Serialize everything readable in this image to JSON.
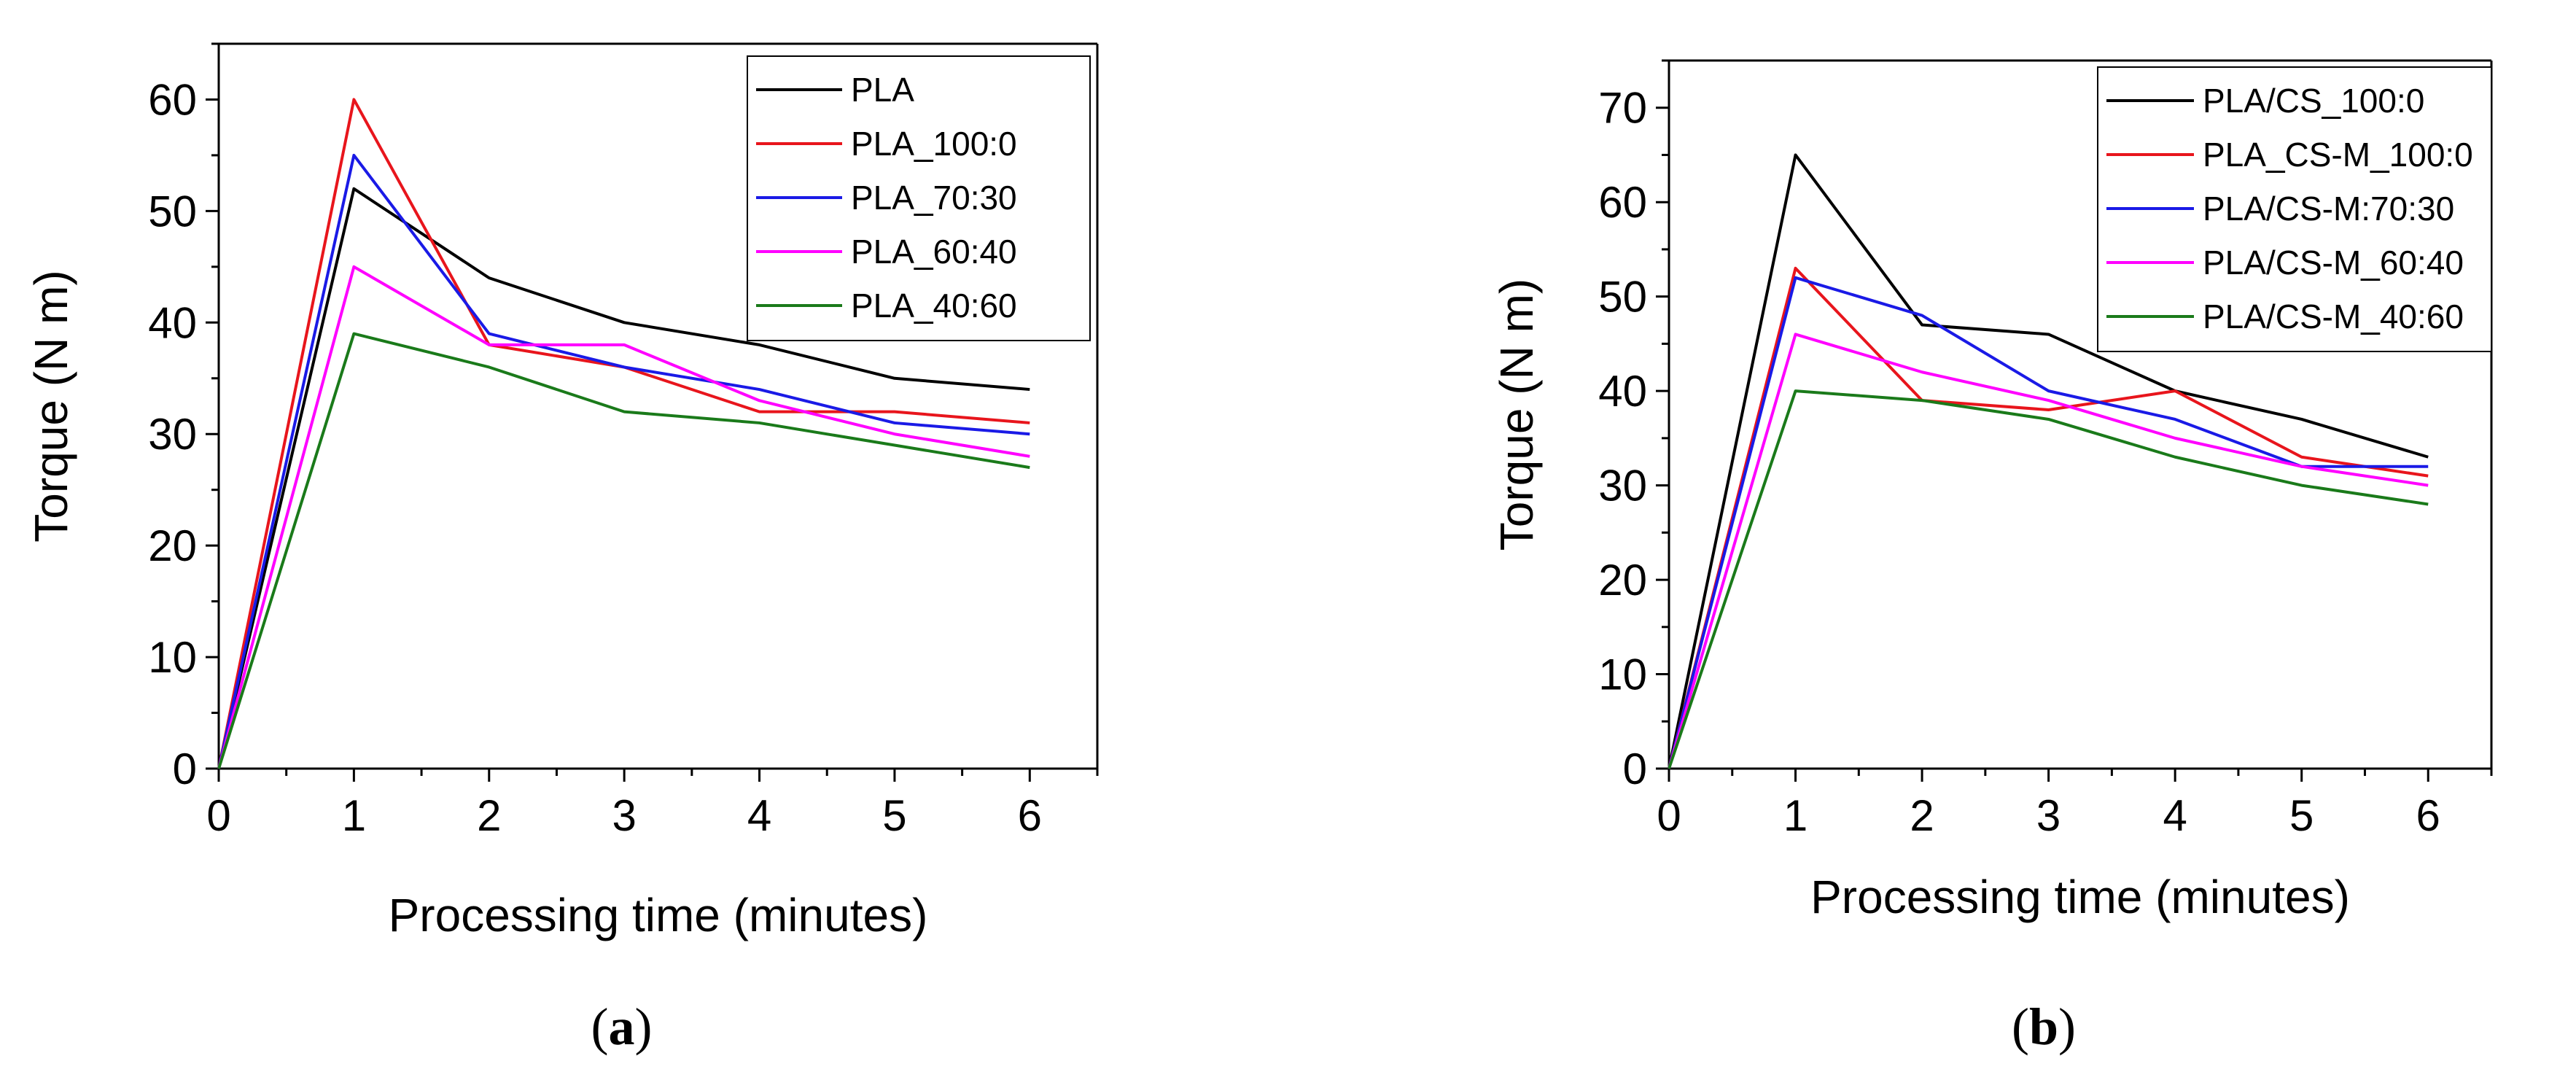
{
  "chart_data": [
    {
      "type": "line",
      "panel_label": "a",
      "title": "",
      "xlabel": "Processing time (minutes)",
      "ylabel": "Torque (N m)",
      "xlim": [
        0,
        6.5
      ],
      "ylim": [
        0,
        65
      ],
      "xticks": [
        0,
        1,
        2,
        3,
        4,
        5,
        6
      ],
      "yticks": [
        0,
        10,
        20,
        30,
        40,
        50,
        60
      ],
      "legend_position": "top-right",
      "x": [
        0,
        1,
        2,
        3,
        4,
        5,
        6
      ],
      "series": [
        {
          "name": "PLA",
          "color": "#000000",
          "values": [
            0,
            52,
            44,
            40,
            38,
            35,
            34
          ]
        },
        {
          "name": "PLA_100:0",
          "color": "#e8151c",
          "values": [
            0,
            60,
            38,
            36,
            32,
            32,
            31
          ]
        },
        {
          "name": "PLA_70:30",
          "color": "#1a1ae6",
          "values": [
            0,
            55,
            39,
            36,
            34,
            31,
            30
          ]
        },
        {
          "name": "PLA_60:40",
          "color": "#ff00ff",
          "values": [
            0,
            45,
            38,
            38,
            33,
            30,
            28
          ]
        },
        {
          "name": "PLA_40:60",
          "color": "#1a7a1a",
          "values": [
            0,
            39,
            36,
            32,
            31,
            29,
            27
          ]
        }
      ]
    },
    {
      "type": "line",
      "panel_label": "b",
      "title": "",
      "xlabel": "Processing time (minutes)",
      "ylabel": "Torque (N m)",
      "xlim": [
        0,
        6.5
      ],
      "ylim": [
        0,
        75
      ],
      "xticks": [
        0,
        1,
        2,
        3,
        4,
        5,
        6
      ],
      "yticks": [
        0,
        10,
        20,
        30,
        40,
        50,
        60,
        70
      ],
      "legend_position": "top-right",
      "x": [
        0,
        1,
        2,
        3,
        4,
        5,
        6
      ],
      "series": [
        {
          "name": "PLA/CS_100:0",
          "color": "#000000",
          "values": [
            0,
            65,
            47,
            46,
            40,
            37,
            33
          ]
        },
        {
          "name": "PLA_CS-M_100:0",
          "color": "#e8151c",
          "values": [
            0,
            53,
            39,
            38,
            40,
            33,
            31
          ]
        },
        {
          "name": "PLA/CS-M:70:30",
          "color": "#1a1ae6",
          "values": [
            0,
            52,
            48,
            40,
            37,
            32,
            32
          ]
        },
        {
          "name": "PLA/CS-M_60:40",
          "color": "#ff00ff",
          "values": [
            0,
            46,
            42,
            39,
            35,
            32,
            30
          ]
        },
        {
          "name": "PLA/CS-M_40:60",
          "color": "#1a7a1a",
          "values": [
            0,
            40,
            39,
            37,
            33,
            30,
            28
          ]
        }
      ]
    }
  ]
}
